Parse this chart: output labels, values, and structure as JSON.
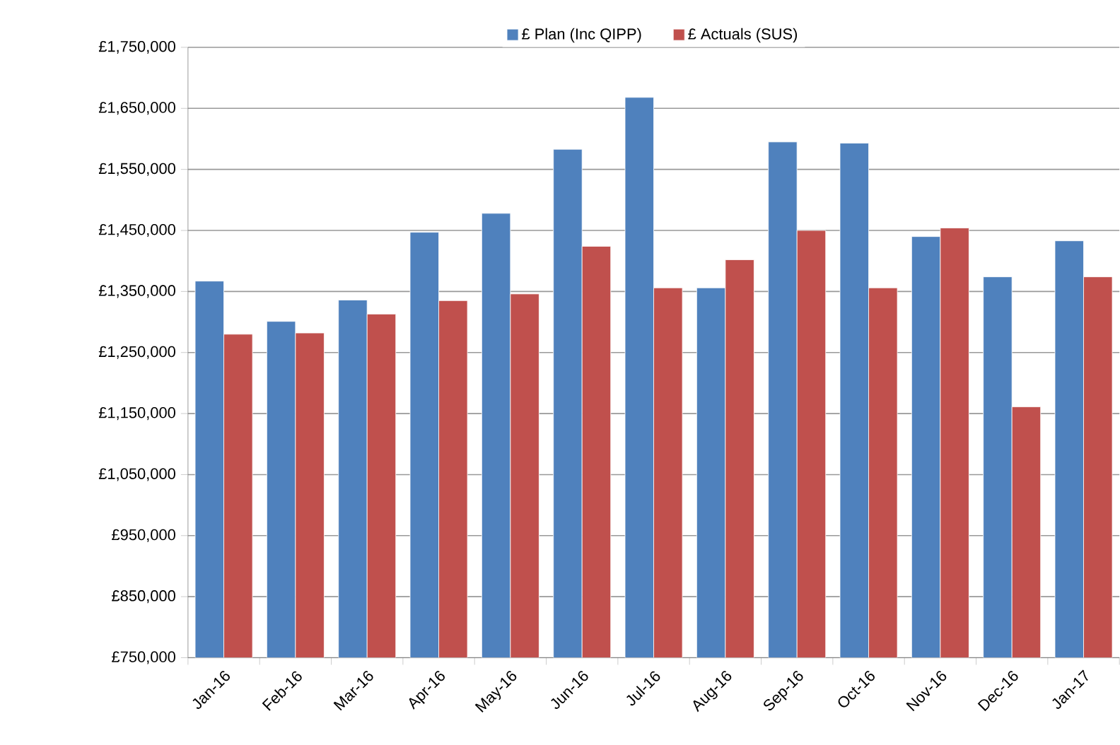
{
  "chart_data": {
    "type": "bar",
    "categories": [
      "Jan-16",
      "Feb-16",
      "Mar-16",
      "Apr-16",
      "May-16",
      "Jun-16",
      "Jul-16",
      "Aug-16",
      "Sep-16",
      "Oct-16",
      "Nov-16",
      "Dec-16",
      "Jan-17"
    ],
    "series": [
      {
        "name": "£ Plan (Inc QIPP)",
        "color": "#4f81bd",
        "values": [
          1367000,
          1301000,
          1336000,
          1447000,
          1478000,
          1583000,
          1668000,
          1356000,
          1595000,
          1593000,
          1440000,
          1374000,
          1433000
        ]
      },
      {
        "name": "£ Actuals (SUS)",
        "color": "#c0504d",
        "values": [
          1280000,
          1282000,
          1313000,
          1335000,
          1346000,
          1424000,
          1356000,
          1402000,
          1450000,
          1356000,
          1454000,
          1161000,
          1374000
        ]
      }
    ],
    "ylim": [
      750000,
      1750000
    ],
    "yticks": [
      {
        "value": 750000,
        "label": "£750,000"
      },
      {
        "value": 850000,
        "label": "£850,000"
      },
      {
        "value": 950000,
        "label": "£950,000"
      },
      {
        "value": 1050000,
        "label": "£1,050,000"
      },
      {
        "value": 1150000,
        "label": "£1,150,000"
      },
      {
        "value": 1250000,
        "label": "£1,250,000"
      },
      {
        "value": 1350000,
        "label": "£1,350,000"
      },
      {
        "value": 1450000,
        "label": "£1,450,000"
      },
      {
        "value": 1550000,
        "label": "£1,550,000"
      },
      {
        "value": 1650000,
        "label": "£1,650,000"
      },
      {
        "value": 1750000,
        "label": "£1,750,000"
      }
    ],
    "grid": "y",
    "legend": "top"
  }
}
